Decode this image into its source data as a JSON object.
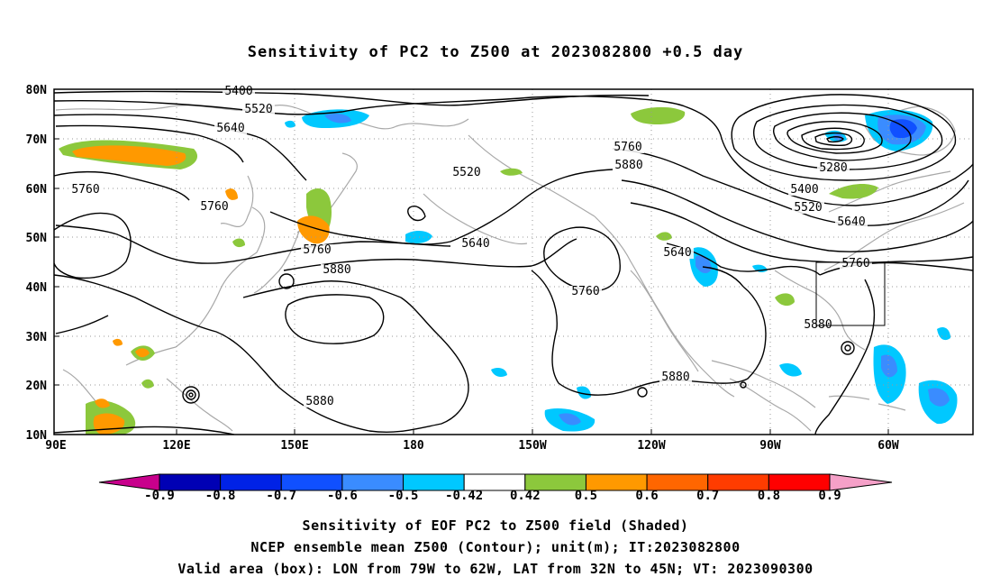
{
  "title": "Sensitivity of PC2 to Z500 at 2023082800 +0.5 day",
  "map": {
    "lat_labels": [
      "80N",
      "70N",
      "60N",
      "50N",
      "40N",
      "30N",
      "20N",
      "10N"
    ],
    "lon_labels": [
      "90E",
      "120E",
      "150E",
      "180",
      "150W",
      "120W",
      "90W",
      "60W"
    ],
    "contour_labels": [
      {
        "text": "5400"
      },
      {
        "text": "5520"
      },
      {
        "text": "5640"
      },
      {
        "text": "5760"
      },
      {
        "text": "5760"
      },
      {
        "text": "5520"
      },
      {
        "text": "5640"
      },
      {
        "text": "5760"
      },
      {
        "text": "5880"
      },
      {
        "text": "5640"
      },
      {
        "text": "5760"
      },
      {
        "text": "5760"
      },
      {
        "text": "5880"
      },
      {
        "text": "5280"
      },
      {
        "text": "5400"
      },
      {
        "text": "5520"
      },
      {
        "text": "5640"
      },
      {
        "text": "5760"
      },
      {
        "text": "5880"
      },
      {
        "text": "5880"
      },
      {
        "text": "5880"
      }
    ],
    "valid_box": {
      "lon": [
        "79W",
        "62W"
      ],
      "lat": [
        "32N",
        "45N"
      ]
    }
  },
  "colorbar": {
    "labels": [
      "-0.9",
      "-0.8",
      "-0.7",
      "-0.6",
      "-0.5",
      "-0.42",
      "0.42",
      "0.5",
      "0.6",
      "0.7",
      "0.8",
      "0.9"
    ],
    "colors": {
      "below": "#c8008c",
      "bins": [
        "#0000b4",
        "#0022e6",
        "#1050ff",
        "#3a8cff",
        "#00c8ff",
        "#ffffff",
        "#8cc83c",
        "#ff9900",
        "#ff6600",
        "#ff3c00",
        "#ff0000"
      ],
      "above": "#f5a0c8"
    }
  },
  "captions": {
    "line1": "Sensitivity of EOF PC2 to Z500 field (Shaded)",
    "line2": "NCEP ensemble mean Z500 (Contour); unit(m); IT:2023082800",
    "line3": "Valid area (box): LON from 79W to 62W, LAT from 32N to 45N; VT: 2023090300"
  }
}
